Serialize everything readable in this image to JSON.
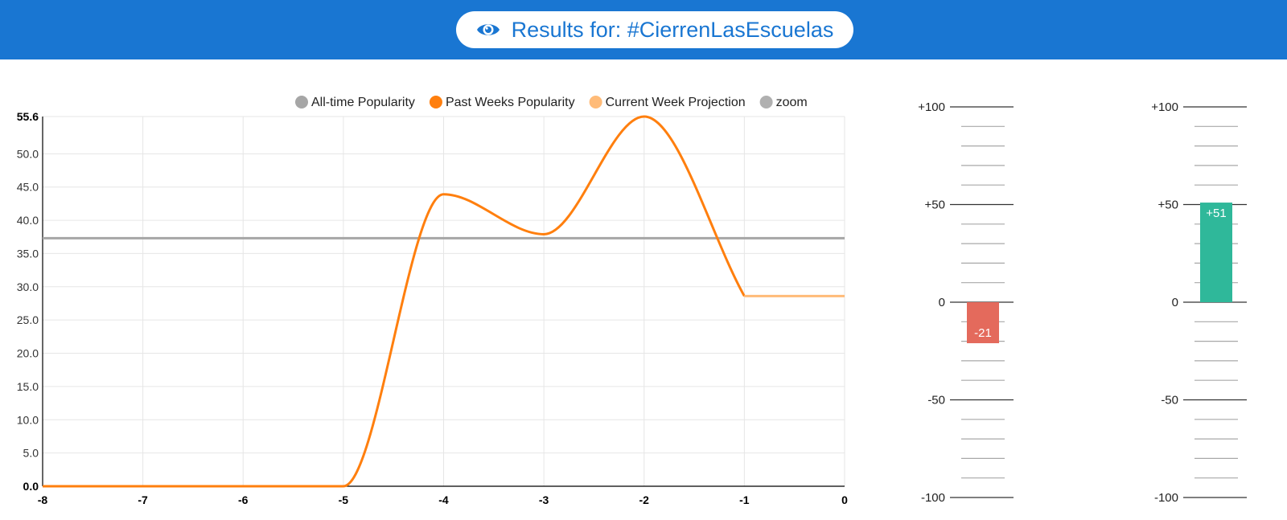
{
  "header": {
    "search_label": "Results for: #CierrenLasEscuelas",
    "icon": "eye-icon",
    "background_color": "#1976d2"
  },
  "chart_data": [
    {
      "type": "line",
      "legend_position": "top",
      "grid": true,
      "series": [
        {
          "name": "All-time Popularity",
          "color": "#a6a6a6",
          "x": [
            -8,
            0
          ],
          "y": [
            37.3,
            37.3
          ]
        },
        {
          "name": "Past Weeks Popularity",
          "color": "#ff7f0e",
          "x": [
            -8,
            -7,
            -6,
            -5,
            -4,
            -3,
            -2,
            -1
          ],
          "y": [
            0,
            0,
            0,
            0,
            43.9,
            37.9,
            55.6,
            28.6
          ]
        },
        {
          "name": "Current Week Projection",
          "color": "#ffbb78",
          "x": [
            -1,
            0
          ],
          "y": [
            28.6,
            28.6
          ]
        },
        {
          "name": "zoom",
          "color": "#b0b0b0",
          "x": [],
          "y": []
        }
      ],
      "xlim": [
        -8,
        0
      ],
      "ylim": [
        0,
        55.6
      ],
      "xticks": [
        "-8",
        "-7",
        "-6",
        "-5",
        "-4",
        "-3",
        "-2",
        "-1",
        "0"
      ],
      "yticks": [
        "0.0",
        "5.0",
        "10.0",
        "15.0",
        "20.0",
        "25.0",
        "30.0",
        "35.0",
        "40.0",
        "45.0",
        "50.0",
        "55.6"
      ]
    },
    {
      "type": "bar",
      "values": [
        -21
      ],
      "labels": [
        "-21"
      ],
      "color": "#e46a5c",
      "ylim": [
        -100,
        100
      ],
      "yticks": [
        "+100",
        "+50",
        "0",
        "-50",
        "-100"
      ]
    },
    {
      "type": "bar",
      "values": [
        51
      ],
      "labels": [
        "+51"
      ],
      "color": "#2fb89a",
      "ylim": [
        -100,
        100
      ],
      "yticks": [
        "+100",
        "+50",
        "0",
        "-50",
        "-100"
      ]
    }
  ]
}
